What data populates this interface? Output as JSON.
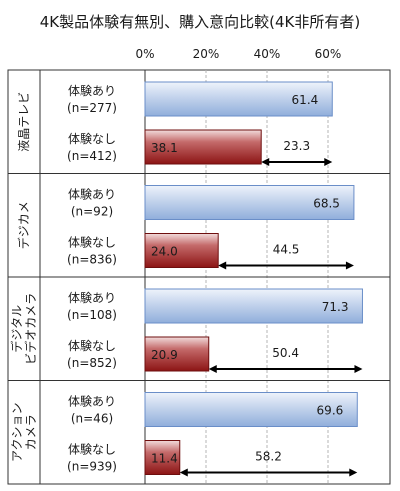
{
  "chart_data": {
    "type": "bar",
    "orientation": "horizontal",
    "title": "4K製品体験有無別、購入意向比較(4K非所有者)",
    "xlim": [
      0,
      70
    ],
    "xticks": [
      "0%",
      "20%",
      "40%",
      "60%"
    ],
    "grid": true,
    "colors": {
      "with_experience": "#9ab4dc",
      "without_experience": "#9c2020"
    },
    "groups": [
      {
        "name": "液晶テレビ",
        "rows": [
          {
            "label": "体験あり",
            "n": "(n=277)",
            "value": 61.4,
            "series": "with_experience"
          },
          {
            "label": "体験なし",
            "n": "(n=412)",
            "value": 38.1,
            "series": "without_experience"
          }
        ],
        "diff": 23.3
      },
      {
        "name": "デジカメ",
        "rows": [
          {
            "label": "体験あり",
            "n": "(n=92)",
            "value": 68.5,
            "series": "with_experience"
          },
          {
            "label": "体験なし",
            "n": "(n=836)",
            "value": 24.0,
            "series": "without_experience"
          }
        ],
        "diff": 44.5
      },
      {
        "name": "デジタル\nビデオカメラ",
        "rows": [
          {
            "label": "体験あり",
            "n": "(n=108)",
            "value": 71.3,
            "series": "with_experience"
          },
          {
            "label": "体験なし",
            "n": "(n=852)",
            "value": 20.9,
            "series": "without_experience"
          }
        ],
        "diff": 50.4
      },
      {
        "name": "アクション\nカメラ",
        "rows": [
          {
            "label": "体験あり",
            "n": "(n=46)",
            "value": 69.6,
            "series": "with_experience"
          },
          {
            "label": "体験なし",
            "n": "(n=939)",
            "value": 11.4,
            "series": "without_experience"
          }
        ],
        "diff": 58.2
      }
    ]
  }
}
